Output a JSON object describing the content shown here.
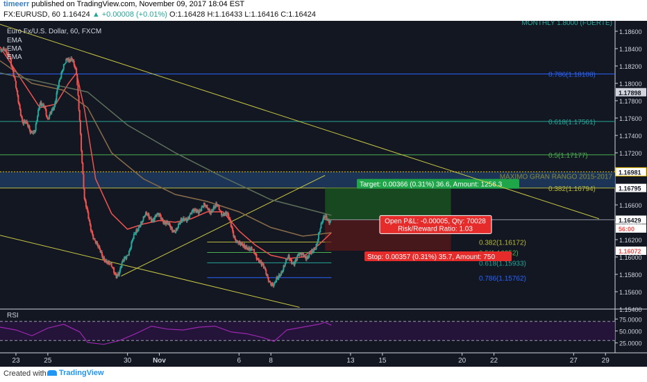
{
  "header": {
    "user": "timeerr",
    "published": "published on TradingView.com, November 09, 2017 18:04 EST",
    "symbol_line": "FX:EURUSD, 60",
    "last": "1.16424",
    "change": "▲ +0.00008 (+0.01%)",
    "ohlc": "O:1.16428 H:1.16433 L:1.16416 C:1.16424"
  },
  "footer": {
    "created_with": "Created with",
    "brand": "TradingView"
  },
  "chart_data": {
    "type": "candlestick",
    "title": "Euro Fx/U.S. Dollar, 60, FXCM",
    "indicators": [
      "EMA",
      "EMA",
      "EMA"
    ],
    "y_range": [
      1.154,
      1.1872
    ],
    "y_ticks": [
      "1.18600",
      "1.18400",
      "1.18200",
      "1.18000",
      "1.17800",
      "1.17600",
      "1.17400",
      "1.17200",
      "1.17000",
      "1.16600",
      "1.16400",
      "1.16200",
      "1.16000",
      "1.15800",
      "1.15600",
      "1.15400"
    ],
    "x_ticks": [
      {
        "label": "23",
        "day": 0
      },
      {
        "label": "25",
        "day": 2
      },
      {
        "label": "30",
        "day": 7
      },
      {
        "label": "Nov",
        "day": 9
      },
      {
        "label": "6",
        "day": 14
      },
      {
        "label": "8",
        "day": 16
      },
      {
        "label": "13",
        "day": 21
      },
      {
        "label": "15",
        "day": 23
      },
      {
        "label": "20",
        "day": 28
      },
      {
        "label": "22",
        "day": 30
      },
      {
        "label": "27",
        "day": 35
      },
      {
        "label": "29",
        "day": 37
      }
    ],
    "x_range": [
      -1.0,
      37.6
    ],
    "price_badges": [
      {
        "text": "1.17898",
        "value": 1.17898,
        "bg": "#d1d4dc",
        "fg": "#131722"
      },
      {
        "text": "1.16981",
        "value": 1.16981,
        "bg": "#ffffff",
        "fg": "#131722",
        "border": "#f0c000"
      },
      {
        "text": "1.16795",
        "value": 1.16795,
        "bg": "#ffffff",
        "fg": "#131722"
      },
      {
        "text": "1.16429",
        "value": 1.16429,
        "bg": "#ffffff",
        "fg": "#131722"
      },
      {
        "text": "56:00",
        "value": 1.16328,
        "bg": "#ffffff",
        "fg": "#ef5350"
      },
      {
        "text": "1.16072",
        "value": 1.16072,
        "bg": "#ffffff",
        "fg": "#ef5350"
      }
    ],
    "fib_levels_upper": [
      {
        "label": "0.786(1.18108)",
        "value": 1.18108,
        "color": "#2962ff"
      },
      {
        "label": "0.618(1.17561)",
        "value": 1.17561,
        "color": "#26a69a"
      },
      {
        "label": "0.5(1.17177)",
        "value": 1.17177,
        "color": "#4caf50"
      },
      {
        "label": "0.382(1.16794)",
        "value": 1.16794,
        "color": "#b8b83a"
      }
    ],
    "fib_levels_lower": [
      {
        "label": "0.382(1.16172)",
        "value": 1.16172,
        "color": "#b8b83a"
      },
      {
        "label": "0.5(1.16052)",
        "value": 1.16052,
        "color": "#4caf50"
      },
      {
        "label": "0.618(1.15933)",
        "value": 1.15933,
        "color": "#26a69a"
      },
      {
        "label": "0.786(1.15762)",
        "value": 1.15762,
        "color": "#2962ff"
      }
    ],
    "top_label": "MONTHLY 1.8000 (FUERTE)",
    "zone_label": "MÁXIMO GRAN RANGO 2015-2017",
    "zone": [
      1.16795,
      1.16981
    ],
    "position": {
      "target_text": "Target: 0.00366 (0.31%) 36.6, Amount: 1256.3",
      "open_text": "Open P&L: -0.00005, Qty: 70028",
      "rr_text": "Risk/Reward Ratio: 1.03",
      "stop_text": "Stop: 0.00357 (0.31%) 35.7, Amount: 750",
      "entry": 1.16429,
      "target": 1.16795,
      "stop": 1.16072
    },
    "trendlines": [
      {
        "from": [
          -1.0,
          1.1868
        ],
        "to": [
          36.6,
          1.1644
        ],
        "color": "#c8c843"
      },
      {
        "from": [
          6.6,
          1.1578
        ],
        "to": [
          19.4,
          1.1694
        ],
        "color": "#c8c843"
      },
      {
        "from": [
          -1.0,
          1.1625
        ],
        "to": [
          17.8,
          1.1542
        ],
        "color": "#c8c843"
      }
    ],
    "close_path": [
      [
        -1.0,
        1.1838
      ],
      [
        -0.4,
        1.1834
      ],
      [
        -0.2,
        1.1814
      ],
      [
        0.1,
        1.1784
      ],
      [
        0.4,
        1.1758
      ],
      [
        0.6,
        1.1754
      ],
      [
        0.9,
        1.1744
      ],
      [
        1.2,
        1.1748
      ],
      [
        1.5,
        1.1774
      ],
      [
        1.8,
        1.1776
      ],
      [
        2.0,
        1.1758
      ],
      [
        2.4,
        1.1772
      ],
      [
        2.6,
        1.1797
      ],
      [
        2.9,
        1.1812
      ],
      [
        3.2,
        1.183
      ],
      [
        3.5,
        1.1828
      ],
      [
        3.8,
        1.181
      ],
      [
        4.0,
        1.176
      ],
      [
        4.15,
        1.171
      ],
      [
        4.3,
        1.1665
      ],
      [
        4.6,
        1.164
      ],
      [
        4.9,
        1.1622
      ],
      [
        5.2,
        1.1608
      ],
      [
        5.5,
        1.16
      ],
      [
        5.8,
        1.1592
      ],
      [
        6.1,
        1.1586
      ],
      [
        6.3,
        1.158
      ],
      [
        6.5,
        1.1582
      ],
      [
        6.8,
        1.1598
      ],
      [
        7.1,
        1.1608
      ],
      [
        7.4,
        1.1622
      ],
      [
        7.8,
        1.164
      ],
      [
        8.2,
        1.1648
      ],
      [
        8.6,
        1.1644
      ],
      [
        9.0,
        1.1648
      ],
      [
        9.4,
        1.164
      ],
      [
        9.8,
        1.163
      ],
      [
        10.2,
        1.1636
      ],
      [
        10.6,
        1.1644
      ],
      [
        11.0,
        1.165
      ],
      [
        11.4,
        1.1654
      ],
      [
        11.8,
        1.1658
      ],
      [
        12.2,
        1.1654
      ],
      [
        12.6,
        1.1658
      ],
      [
        12.9,
        1.1652
      ],
      [
        13.2,
        1.165
      ],
      [
        13.5,
        1.1636
      ],
      [
        13.8,
        1.162
      ],
      [
        14.1,
        1.1612
      ],
      [
        14.4,
        1.1614
      ],
      [
        14.7,
        1.1608
      ],
      [
        15.0,
        1.1604
      ],
      [
        15.3,
        1.1596
      ],
      [
        15.6,
        1.1584
      ],
      [
        15.9,
        1.1574
      ],
      [
        16.2,
        1.1566
      ],
      [
        16.5,
        1.1578
      ],
      [
        16.8,
        1.159
      ],
      [
        17.1,
        1.1598
      ],
      [
        17.4,
        1.1594
      ],
      [
        17.7,
        1.16
      ],
      [
        18.0,
        1.1604
      ],
      [
        18.3,
        1.16
      ],
      [
        18.6,
        1.1604
      ],
      [
        18.8,
        1.1612
      ],
      [
        19.0,
        1.1628
      ],
      [
        19.2,
        1.1638
      ],
      [
        19.4,
        1.1646
      ],
      [
        19.6,
        1.1644
      ],
      [
        19.8,
        1.1642
      ]
    ],
    "ema_paths": [
      {
        "color": "#ef5350",
        "points": [
          [
            -1.0,
            1.1842
          ],
          [
            0.5,
            1.18
          ],
          [
            1.5,
            1.1772
          ],
          [
            2.5,
            1.1776
          ],
          [
            3.3,
            1.18
          ],
          [
            3.8,
            1.1812
          ],
          [
            4.3,
            1.177
          ],
          [
            5.0,
            1.169
          ],
          [
            6.0,
            1.165
          ],
          [
            7.0,
            1.1632
          ],
          [
            8.0,
            1.1638
          ],
          [
            9.0,
            1.1642
          ],
          [
            10.0,
            1.164
          ],
          [
            11.0,
            1.1644
          ],
          [
            12.0,
            1.1652
          ],
          [
            13.0,
            1.1652
          ],
          [
            14.0,
            1.163
          ],
          [
            15.0,
            1.1614
          ],
          [
            16.0,
            1.1602
          ],
          [
            17.0,
            1.1598
          ],
          [
            18.0,
            1.16
          ],
          [
            19.0,
            1.1614
          ],
          [
            19.8,
            1.1628
          ]
        ]
      },
      {
        "color": "#8a6d4a",
        "points": [
          [
            -1.0,
            1.1826
          ],
          [
            1.0,
            1.18
          ],
          [
            3.0,
            1.1792
          ],
          [
            4.5,
            1.1772
          ],
          [
            6.0,
            1.172
          ],
          [
            8.0,
            1.169
          ],
          [
            10.0,
            1.1672
          ],
          [
            12.0,
            1.1664
          ],
          [
            14.0,
            1.1652
          ],
          [
            16.0,
            1.1634
          ],
          [
            18.0,
            1.1624
          ],
          [
            19.8,
            1.1628
          ]
        ]
      },
      {
        "color": "#5e6f5a",
        "points": [
          [
            -1.0,
            1.1812
          ],
          [
            2.0,
            1.18
          ],
          [
            4.5,
            1.179
          ],
          [
            7.0,
            1.1752
          ],
          [
            10.0,
            1.172
          ],
          [
            13.0,
            1.1692
          ],
          [
            16.0,
            1.1666
          ],
          [
            19.8,
            1.1648
          ]
        ]
      }
    ],
    "rsi": {
      "label": "RSI",
      "y_ticks": [
        "75.0000",
        "50.0000",
        "25.0000"
      ],
      "levels": [
        30,
        70
      ],
      "range": [
        10,
        90
      ],
      "points": [
        [
          -1.0,
          58
        ],
        [
          0,
          52
        ],
        [
          1,
          40
        ],
        [
          2,
          56
        ],
        [
          3,
          64
        ],
        [
          4,
          48
        ],
        [
          4.5,
          26
        ],
        [
          5.5,
          22
        ],
        [
          6.5,
          30
        ],
        [
          7.5,
          44
        ],
        [
          8.5,
          60
        ],
        [
          9.5,
          54
        ],
        [
          10.5,
          52
        ],
        [
          11.5,
          58
        ],
        [
          12.5,
          60
        ],
        [
          13.5,
          48
        ],
        [
          14.5,
          44
        ],
        [
          15.5,
          36
        ],
        [
          16.2,
          28
        ],
        [
          17,
          52
        ],
        [
          18,
          58
        ],
        [
          19,
          64
        ],
        [
          19.4,
          68
        ],
        [
          19.8,
          62
        ]
      ]
    }
  }
}
